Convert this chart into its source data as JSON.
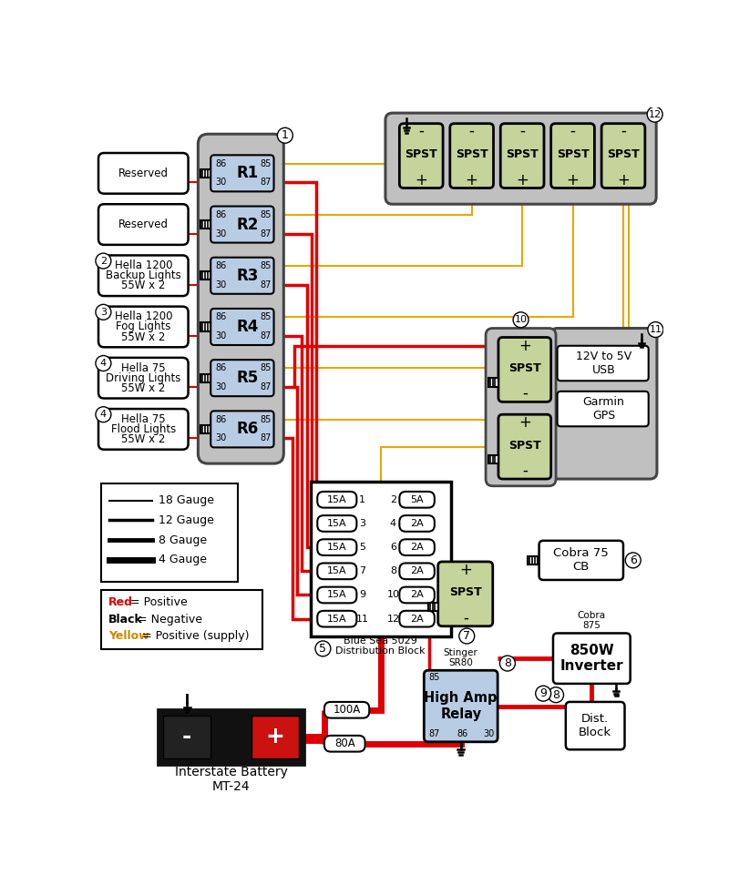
{
  "bg": "#ffffff",
  "panel_gray": "#c0c0c0",
  "relay_blue": "#b8cce4",
  "spst_green": "#c4d49a",
  "wire_red": "#e00000",
  "wire_yellow": "#e8a800",
  "relay_names": [
    "R1",
    "R2",
    "R3",
    "R4",
    "R5",
    "R6"
  ],
  "relay_labels": [
    "Reserved",
    "Reserved",
    "Hella 1200\nBackup Lights\n55W x 2",
    "Hella 1200\nFog Lights\n55W x 2",
    "Hella 75\nDriving Lights\n55W x 2",
    "Hella 75\nFlood Lights\n55W x 2"
  ],
  "relay_callouts": [
    "",
    "",
    "2",
    "3",
    "4",
    "4"
  ],
  "fuse_left_vals": [
    "15A",
    "15A",
    "15A",
    "15A",
    "15A",
    "15A"
  ],
  "fuse_left_nums": [
    "1",
    "3",
    "5",
    "7",
    "9",
    "11"
  ],
  "fuse_right_vals": [
    "5A",
    "2A",
    "2A",
    "2A",
    "2A",
    "2A"
  ],
  "fuse_right_nums": [
    "2",
    "4",
    "6",
    "8",
    "10",
    "12"
  ],
  "gauge_labels": [
    "18 Gauge",
    "12 Gauge",
    "8 Gauge",
    "4 Gauge"
  ],
  "gauge_lws": [
    1.5,
    2.5,
    3.5,
    5.0
  ],
  "legend_color_labels": [
    "Red   = Positive",
    "Black  = Negative",
    "Yellow = Positive (supply)"
  ],
  "legend_colors": [
    "#dd0000",
    "#000000",
    "#e8a800"
  ]
}
